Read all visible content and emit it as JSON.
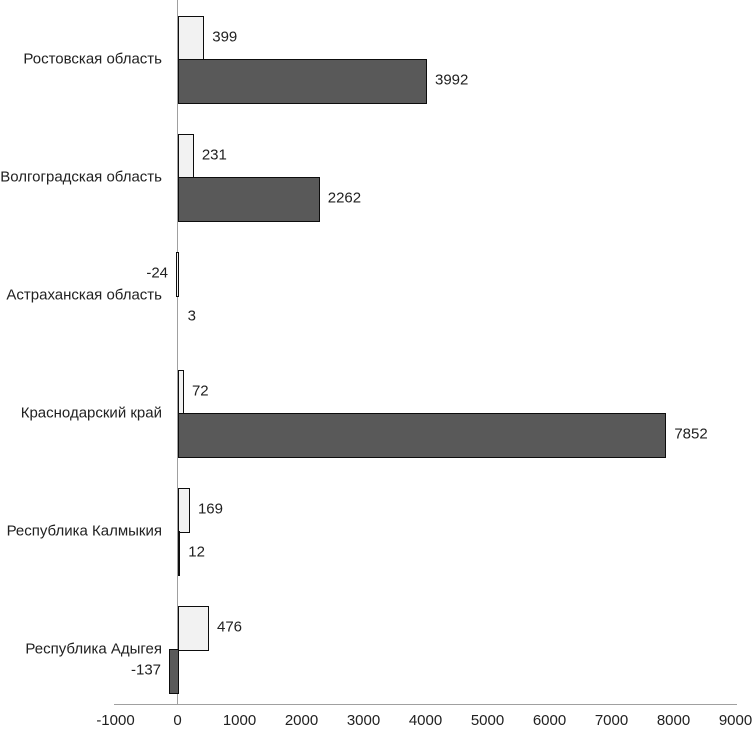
{
  "chart_data": {
    "type": "bar",
    "orientation": "horizontal",
    "categories": [
      "Ростовская область",
      "Волгоградская область",
      "Астраханская область",
      "Краснодарский край",
      "Республика Калмыкия",
      "Республика Адыгея"
    ],
    "series": [
      {
        "name": "light-series",
        "fill": "#f2f2f2",
        "values": [
          399,
          231,
          -24,
          72,
          169,
          476
        ]
      },
      {
        "name": "dark-series",
        "fill": "#595959",
        "values": [
          3992,
          2262,
          3,
          7852,
          12,
          -137
        ]
      }
    ],
    "value_labels": {
      "light-series": [
        "399",
        "231",
        "-24",
        "72",
        "169",
        "476"
      ],
      "dark-series": [
        "3992",
        "2262",
        "3",
        "7852",
        "12",
        "-137"
      ]
    },
    "x_ticks": [
      -1000,
      0,
      1000,
      2000,
      3000,
      4000,
      5000,
      6000,
      7000,
      8000,
      9000
    ],
    "x_tick_labels": [
      "-1000",
      "0",
      "1000",
      "2000",
      "3000",
      "4000",
      "5000",
      "6000",
      "7000",
      "8000",
      "9000"
    ],
    "xlim": [
      -1000,
      9000
    ],
    "grid": false,
    "legend": false,
    "value_labels_shown": true
  },
  "colors": {
    "background": "#ffffff",
    "bar_border": "#0d0d0d",
    "axis_line": "#a0a0a0",
    "text": "#212121",
    "light_bar_fill": "#f2f2f2",
    "dark_bar_fill": "#595959"
  }
}
